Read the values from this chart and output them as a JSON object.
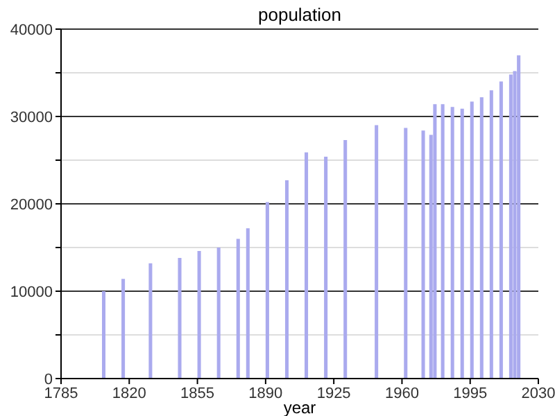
{
  "chart_data": {
    "type": "bar",
    "title": "population",
    "xlabel": "year",
    "x": [
      1807,
      1817,
      1831,
      1846,
      1856,
      1866,
      1876,
      1881,
      1891,
      1901,
      1911,
      1921,
      1931,
      1947,
      1962,
      1971,
      1975,
      1977,
      1981,
      1986,
      1991,
      1996,
      2001,
      2006,
      2011,
      2016,
      2018,
      2020
    ],
    "values": [
      10000,
      11400,
      13200,
      13800,
      14600,
      15000,
      16000,
      17200,
      20200,
      22700,
      25900,
      25400,
      27300,
      29000,
      28700,
      28400,
      27900,
      31400,
      31400,
      31100,
      30900,
      31700,
      32200,
      33000,
      34000,
      34800,
      35200,
      37000
    ],
    "color": "#aaaaee",
    "xlim": [
      1785,
      2030
    ],
    "xticks": [
      1785,
      1820,
      1855,
      1890,
      1925,
      1960,
      1995,
      2030
    ],
    "ylim": [
      0,
      40000
    ],
    "yticks": [
      0,
      {
        "value": 5000,
        "label": null
      },
      10000,
      {
        "value": 15000,
        "label": null
      },
      20000,
      {
        "value": 25000,
        "label": null
      },
      30000,
      {
        "value": 35000,
        "label": null
      },
      40000
    ],
    "grid": "y"
  }
}
